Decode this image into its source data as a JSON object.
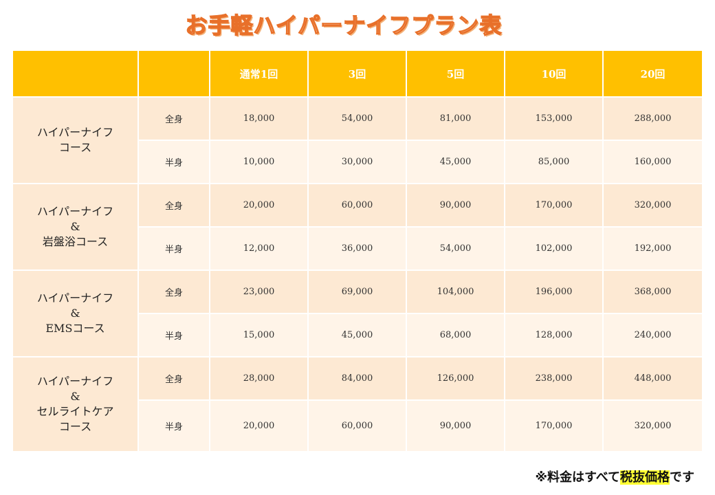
{
  "title": "お手軽ハイパーナイフプラン表",
  "headers": [
    "",
    "",
    "通常1回",
    "3回",
    "5回",
    "10回",
    "20回"
  ],
  "courses": [
    {
      "name_lines": [
        "ハイパーナイフ",
        "コース"
      ],
      "rows": [
        {
          "type": "全身",
          "prices": [
            "18,000",
            "54,000",
            "81,000",
            "153,000",
            "288,000"
          ]
        },
        {
          "type": "半身",
          "prices": [
            "10,000",
            "30,000",
            "45,000",
            "85,000",
            "160,000"
          ]
        }
      ]
    },
    {
      "name_lines": [
        "ハイパーナイフ",
        "&",
        "岩盤浴コース"
      ],
      "rows": [
        {
          "type": "全身",
          "prices": [
            "20,000",
            "60,000",
            "90,000",
            "170,000",
            "320,000"
          ]
        },
        {
          "type": "半身",
          "prices": [
            "12,000",
            "36,000",
            "54,000",
            "102,000",
            "192,000"
          ]
        }
      ]
    },
    {
      "name_lines": [
        "ハイパーナイフ",
        "&",
        "EMSコース"
      ],
      "rows": [
        {
          "type": "全身",
          "prices": [
            "23,000",
            "69,000",
            "104,000",
            "196,000",
            "368,000"
          ]
        },
        {
          "type": "半身",
          "prices": [
            "15,000",
            "45,000",
            "68,000",
            "128,000",
            "240,000"
          ]
        }
      ]
    },
    {
      "name_lines": [
        "ハイパーナイフ",
        "&",
        "セルライトケア",
        "コース"
      ],
      "rows": [
        {
          "type": "全身",
          "prices": [
            "28,000",
            "84,000",
            "126,000",
            "238,000",
            "448,000"
          ]
        },
        {
          "type": "半身",
          "prices": [
            "20,000",
            "60,000",
            "90,000",
            "170,000",
            "320,000"
          ]
        }
      ]
    }
  ],
  "note": {
    "prefix": "※料金はすべて",
    "highlight": "税抜価格",
    "suffix": "です"
  }
}
